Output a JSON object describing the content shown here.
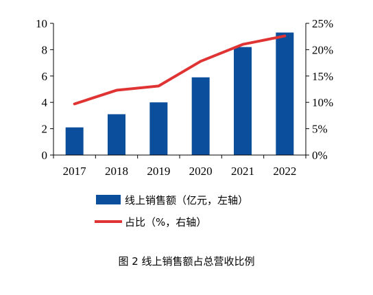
{
  "chart_data": {
    "type": "bar",
    "categories": [
      "2017",
      "2018",
      "2019",
      "2020",
      "2021",
      "2022"
    ],
    "series": [
      {
        "name": "线上销售额（亿元，左轴）",
        "type": "bar",
        "axis": "left",
        "values": [
          2.1,
          3.1,
          4.0,
          5.9,
          8.2,
          9.3
        ]
      },
      {
        "name": "占比（%，右轴）",
        "type": "line",
        "axis": "right",
        "values": [
          9.7,
          12.3,
          13.1,
          17.8,
          21.0,
          22.6
        ]
      }
    ],
    "y_left": {
      "ylim": [
        0,
        10
      ],
      "ticks": [
        "0",
        "2",
        "4",
        "6",
        "8",
        "10"
      ]
    },
    "y_right": {
      "ylim": [
        0,
        25
      ],
      "ticks": [
        "0%",
        "5%",
        "10%",
        "15%",
        "20%",
        "25%"
      ]
    },
    "legend_position": "bottom",
    "grid": false
  },
  "caption": "图 2  线上销售额占总营收比例",
  "colors": {
    "bar": "#0b4f9c",
    "line": "#e03434",
    "axis": "#000000"
  }
}
